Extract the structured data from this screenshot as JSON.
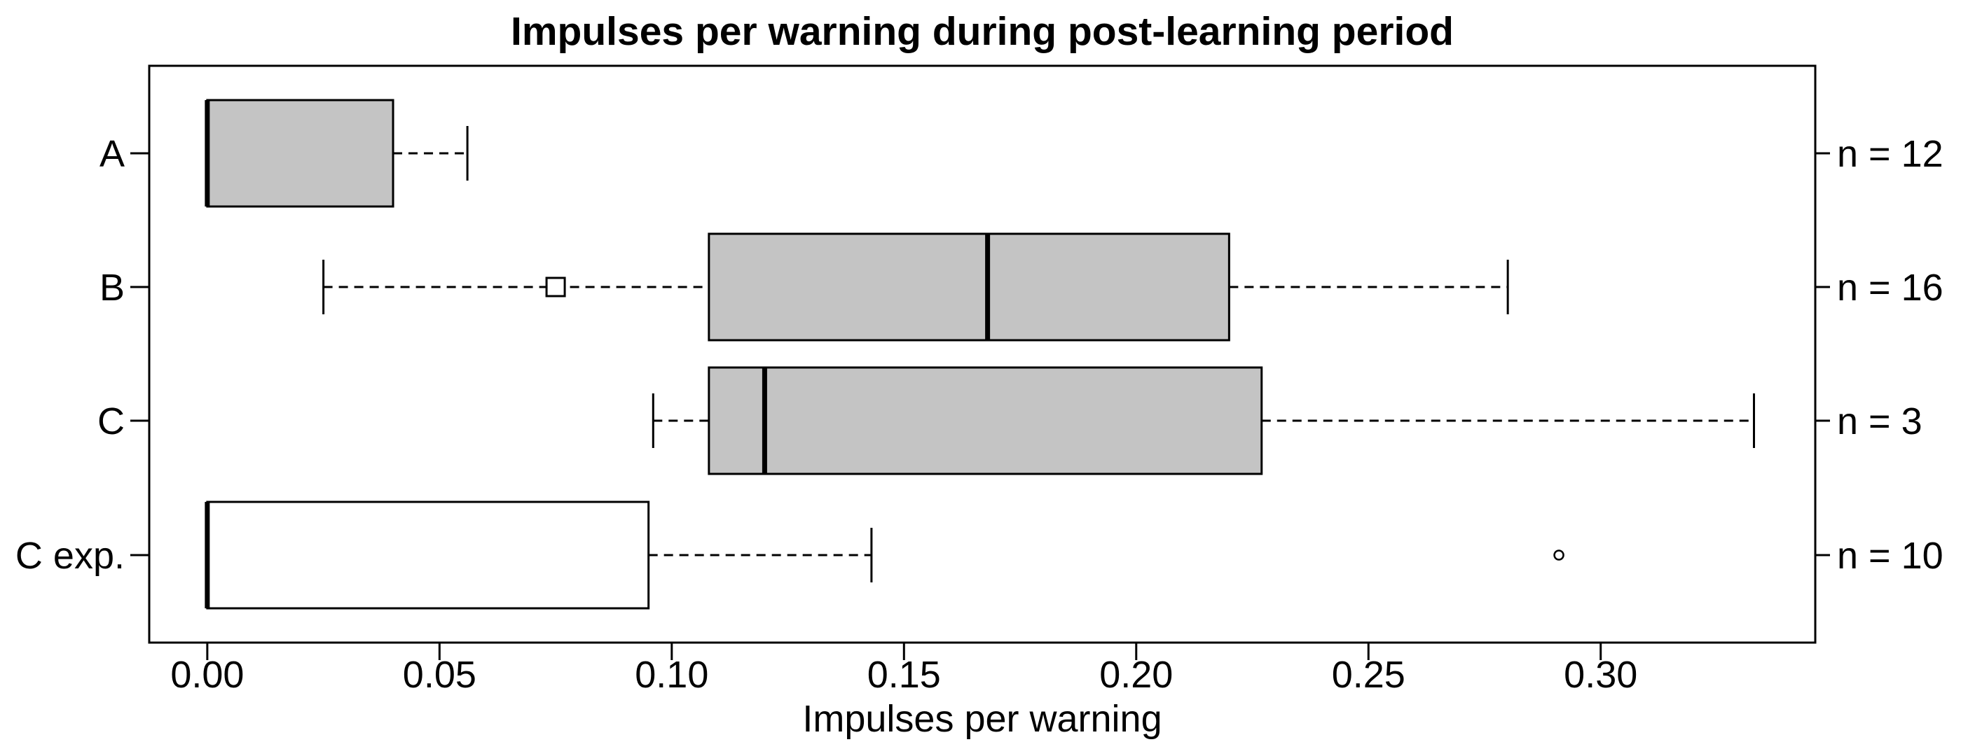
{
  "chart_data": {
    "type": "boxplot",
    "orientation": "horizontal",
    "title": "Impulses per warning during post-learning period",
    "xlabel": "Impulses per warning",
    "ylabel": "",
    "xlim": [
      -0.0125,
      0.3462
    ],
    "grid": false,
    "x_ticks": [
      0.0,
      0.05,
      0.1,
      0.15,
      0.2,
      0.25,
      0.3
    ],
    "x_tick_labels": [
      "0.00",
      "0.05",
      "0.10",
      "0.15",
      "0.20",
      "0.25",
      "0.30"
    ],
    "colors": {
      "line": "#000000",
      "background": "#ffffff",
      "box_fill_gray": "#c4c4c4",
      "box_fill_white": "#ffffff"
    },
    "groups": [
      {
        "label": "A",
        "n_label": "n = 12",
        "n": 12,
        "whisker_low": 0.0,
        "q1": 0.0,
        "median": 0.0,
        "q3": 0.04,
        "whisker_high": 0.056,
        "fill": "#c4c4c4",
        "markers": [],
        "outliers": []
      },
      {
        "label": "B",
        "n_label": "n = 16",
        "n": 16,
        "whisker_low": 0.025,
        "q1": 0.108,
        "median": 0.168,
        "q3": 0.22,
        "whisker_high": 0.28,
        "fill": "#c4c4c4",
        "markers": [
          {
            "shape": "open-square",
            "value": 0.075
          }
        ],
        "outliers": []
      },
      {
        "label": "C",
        "n_label": "n = 3",
        "n": 3,
        "whisker_low": 0.096,
        "q1": 0.108,
        "median": 0.12,
        "q3": 0.227,
        "whisker_high": 0.333,
        "fill": "#c4c4c4",
        "markers": [],
        "outliers": []
      },
      {
        "label": "C exp.",
        "n_label": "n = 10",
        "n": 10,
        "whisker_low": 0.0,
        "q1": 0.0,
        "median": 0.0,
        "q3": 0.095,
        "whisker_high": 0.143,
        "fill": "#ffffff",
        "markers": [],
        "outliers": [
          {
            "shape": "open-circle",
            "value": 0.291
          }
        ]
      }
    ]
  }
}
